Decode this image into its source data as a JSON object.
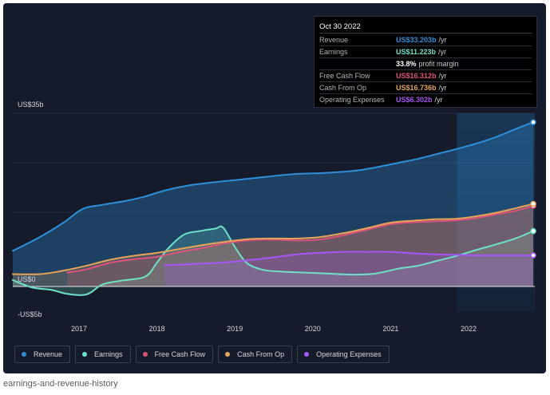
{
  "caption": "earnings-and-revenue-history",
  "tooltip": {
    "date": "Oct 30 2022",
    "rows": [
      {
        "label": "Revenue",
        "value": "US$33.203b",
        "unit": "/yr",
        "color": "#2e8fd9"
      },
      {
        "label": "Earnings",
        "value": "US$11.223b",
        "unit": "/yr",
        "color": "#6ee0c8"
      },
      {
        "label": "",
        "value": "33.8%",
        "unit": "profit margin",
        "color": "#ffffff"
      },
      {
        "label": "Free Cash Flow",
        "value": "US$16.312b",
        "unit": "/yr",
        "color": "#e0527a"
      },
      {
        "label": "Cash From Op",
        "value": "US$16.736b",
        "unit": "/yr",
        "color": "#e8a55a"
      },
      {
        "label": "Operating Expenses",
        "value": "US$6.302b",
        "unit": "/yr",
        "color": "#a855f7"
      }
    ]
  },
  "legend": [
    {
      "label": "Revenue",
      "color": "#2e8fd9"
    },
    {
      "label": "Earnings",
      "color": "#6ee0c8"
    },
    {
      "label": "Free Cash Flow",
      "color": "#e0527a"
    },
    {
      "label": "Cash From Op",
      "color": "#e8a55a"
    },
    {
      "label": "Operating Expenses",
      "color": "#a855f7"
    }
  ],
  "chart_data": {
    "type": "line",
    "title": "earnings-and-revenue-history",
    "x_ticks": [
      "2017",
      "2018",
      "2019",
      "2020",
      "2021",
      "2022"
    ],
    "x_tick_values": [
      2017,
      2018,
      2019,
      2020,
      2021,
      2022
    ],
    "xlim": [
      2016.15,
      2022.85
    ],
    "ylim": [
      -5,
      35
    ],
    "y_labels": [
      {
        "value": 35,
        "text": "US$35b"
      },
      {
        "value": 0,
        "text": "US$0"
      },
      {
        "value": -5,
        "text": "-US$5b"
      }
    ],
    "forecast_start": 2021.85,
    "series": [
      {
        "name": "Revenue",
        "color": "#2e8fd9",
        "x": [
          2016.15,
          2016.5,
          2016.8,
          2017.05,
          2017.3,
          2017.6,
          2017.85,
          2018.1,
          2018.4,
          2018.7,
          2019.0,
          2019.3,
          2019.6,
          2019.85,
          2020.1,
          2020.4,
          2020.6,
          2020.85,
          2021.1,
          2021.35,
          2021.6,
          2021.85,
          2022.1,
          2022.35,
          2022.6,
          2022.83
        ],
        "values": [
          7.2,
          10.0,
          12.9,
          15.7,
          16.5,
          17.3,
          18.2,
          19.4,
          20.4,
          21.0,
          21.5,
          22.0,
          22.5,
          22.8,
          22.9,
          23.2,
          23.5,
          24.2,
          25.0,
          25.8,
          26.8,
          27.8,
          28.9,
          30.2,
          31.8,
          33.2
        ]
      },
      {
        "name": "Earnings",
        "color": "#6ee0c8",
        "x": [
          2016.15,
          2016.4,
          2016.65,
          2016.85,
          2017.1,
          2017.3,
          2017.55,
          2017.85,
          2018.0,
          2018.15,
          2018.35,
          2018.55,
          2018.75,
          2018.85,
          2019.0,
          2019.15,
          2019.35,
          2019.6,
          2019.9,
          2020.2,
          2020.55,
          2020.8,
          2021.1,
          2021.35,
          2021.6,
          2021.85,
          2022.1,
          2022.35,
          2022.6,
          2022.83
        ],
        "values": [
          1.3,
          -0.2,
          -0.7,
          -1.5,
          -1.6,
          0.4,
          1.2,
          2.0,
          4.8,
          7.8,
          10.5,
          11.2,
          11.7,
          11.9,
          8.0,
          4.8,
          3.4,
          3.0,
          2.8,
          2.6,
          2.4,
          2.6,
          3.6,
          4.2,
          5.2,
          6.2,
          7.4,
          8.5,
          9.7,
          11.2
        ]
      },
      {
        "name": "Free Cash Flow",
        "color": "#e0527a",
        "x": [
          2016.85,
          2017.1,
          2017.4,
          2017.7,
          2018.0,
          2018.3,
          2018.6,
          2018.9,
          2019.2,
          2019.5,
          2019.8,
          2020.1,
          2020.4,
          2020.7,
          2021.0,
          2021.3,
          2021.6,
          2021.85,
          2022.1,
          2022.35,
          2022.6,
          2022.83
        ],
        "values": [
          2.8,
          3.5,
          4.8,
          5.5,
          6.0,
          7.0,
          7.8,
          8.8,
          9.4,
          9.5,
          9.3,
          9.5,
          10.4,
          11.5,
          12.6,
          13.0,
          13.2,
          13.4,
          13.8,
          14.6,
          15.3,
          16.3
        ]
      },
      {
        "name": "Cash From Op",
        "color": "#e8a55a",
        "x": [
          2016.15,
          2016.5,
          2016.8,
          2017.1,
          2017.4,
          2017.7,
          2018.0,
          2018.3,
          2018.6,
          2018.9,
          2019.2,
          2019.5,
          2019.8,
          2020.1,
          2020.4,
          2020.7,
          2021.0,
          2021.3,
          2021.6,
          2021.85,
          2022.1,
          2022.35,
          2022.6,
          2022.83
        ],
        "values": [
          2.5,
          2.5,
          3.2,
          4.2,
          5.4,
          6.2,
          6.8,
          7.6,
          8.4,
          9.1,
          9.6,
          9.7,
          9.7,
          10.0,
          10.8,
          11.8,
          12.9,
          13.3,
          13.6,
          13.7,
          14.2,
          14.9,
          15.8,
          16.7
        ]
      },
      {
        "name": "Operating Expenses",
        "color": "#a855f7",
        "x": [
          2018.1,
          2018.4,
          2018.8,
          2019.1,
          2019.4,
          2019.8,
          2020.1,
          2020.4,
          2020.7,
          2021.0,
          2021.3,
          2021.6,
          2021.85,
          2022.1,
          2022.35,
          2022.6,
          2022.83
        ],
        "values": [
          4.3,
          4.5,
          4.8,
          5.2,
          5.7,
          6.5,
          6.8,
          7.0,
          7.0,
          7.0,
          6.7,
          6.5,
          6.4,
          6.3,
          6.3,
          6.3,
          6.3
        ]
      }
    ]
  }
}
